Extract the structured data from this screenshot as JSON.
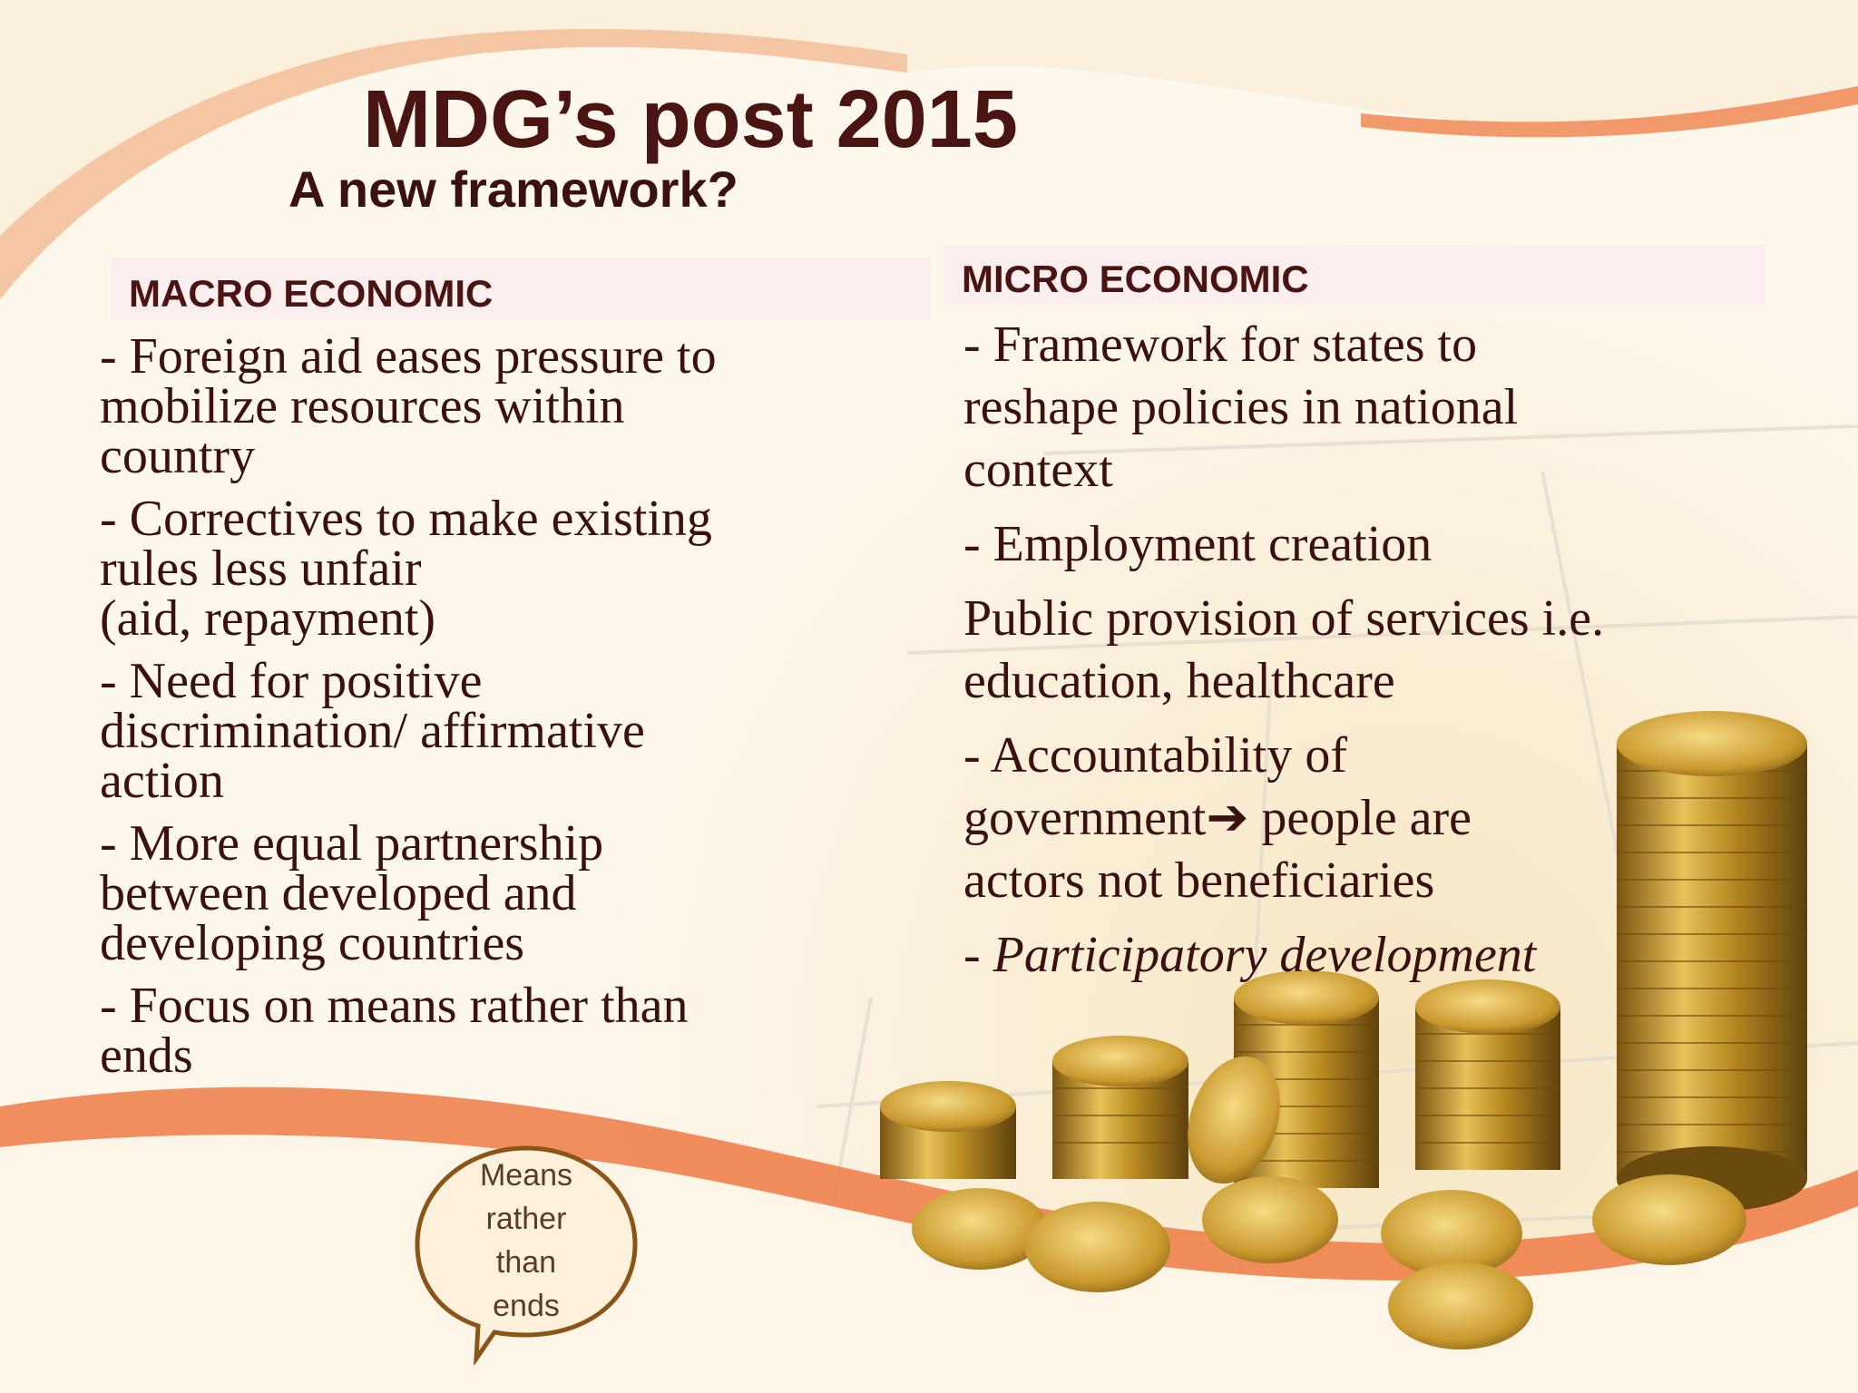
{
  "slide": {
    "title": "MDG’s post 2015",
    "subtitle": "A new framework?"
  },
  "macro": {
    "header": "MACRO ECONOMIC",
    "items": [
      "- Foreign aid eases pressure to\nmobilize resources within\ncountry",
      "- Correctives to make existing\nrules less unfair\n(aid, repayment)",
      "- Need for positive\ndiscrimination/ affirmative\naction",
      "- More equal partnership\nbetween developed and\ndeveloping countries",
      "- Focus on means rather than\nends"
    ]
  },
  "micro": {
    "header": "MICRO ECONOMIC",
    "items": [
      "- Framework for states to\nreshape policies in national\ncontext",
      "- Employment creation",
      "Public provision of services i.e.\neducation, healthcare",
      "- Accountability of\ngovernment➔ people are\nactors not beneficiaries",
      "- Participatory development"
    ]
  },
  "callout": {
    "text": "Means\nrather\nthan\nends"
  },
  "colors": {
    "title": "#4a1412",
    "accent_wave": "#f0824e",
    "background": "#fdf7ec",
    "bubble_fill": "#fdf1dc",
    "bubble_stroke": "#8a5516"
  },
  "image": {
    "subject": "stacks-of-gold-coins"
  }
}
